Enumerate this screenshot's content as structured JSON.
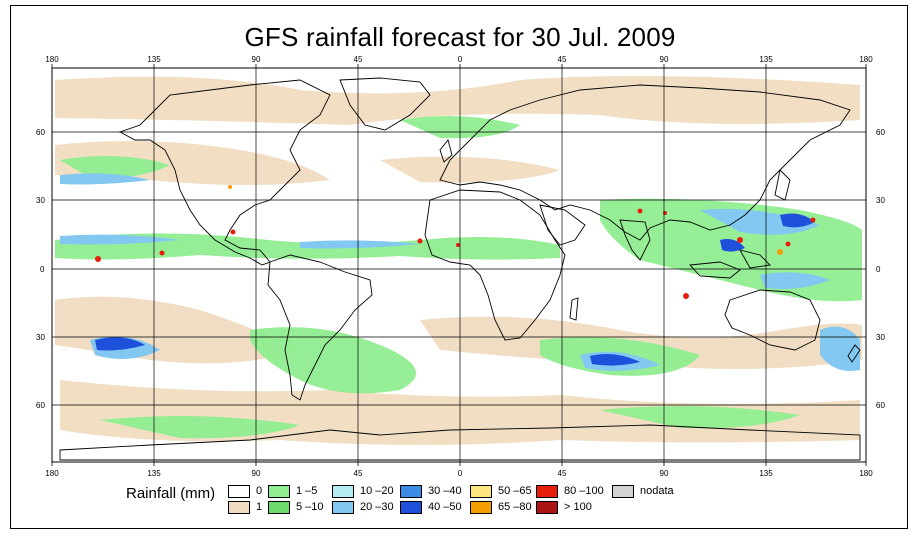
{
  "title": "GFS rainfall forecast for 30 Jul. 2009",
  "axes": {
    "lon_ticks_top": [
      "180",
      "135",
      "90",
      "45",
      "0",
      "45",
      "90",
      "135",
      "180"
    ],
    "lon_ticks_bottom": [
      "180",
      "135",
      "90",
      "45",
      "0",
      "45",
      "90",
      "135",
      "180"
    ],
    "lat_ticks_left": [
      "60",
      "30",
      "0",
      "30",
      "60"
    ],
    "lat_ticks_right": [
      "60",
      "30",
      "0",
      "30",
      "60"
    ]
  },
  "legend": {
    "title": "Rainfall (mm)",
    "items": [
      {
        "label": "0",
        "color": "#ffffff"
      },
      {
        "label": "1",
        "color": "#f0dcc0"
      },
      {
        "label": "1 –5",
        "color": "#90ee90"
      },
      {
        "label": "5 –10",
        "color": "#6cd96c"
      },
      {
        "label": "10 –20",
        "color": "#b4ecf4"
      },
      {
        "label": "20 –30",
        "color": "#82c8f0"
      },
      {
        "label": "30 –40",
        "color": "#3c8ce6"
      },
      {
        "label": "40 –50",
        "color": "#1e50dc"
      },
      {
        "label": "50 –65",
        "color": "#ffe680"
      },
      {
        "label": "65 –80",
        "color": "#f5a000"
      },
      {
        "label": "80 –100",
        "color": "#e61e0a"
      },
      {
        "label": "> 100",
        "color": "#aa1414"
      },
      {
        "label": "nodata",
        "color": "#d2d2d2"
      }
    ]
  }
}
